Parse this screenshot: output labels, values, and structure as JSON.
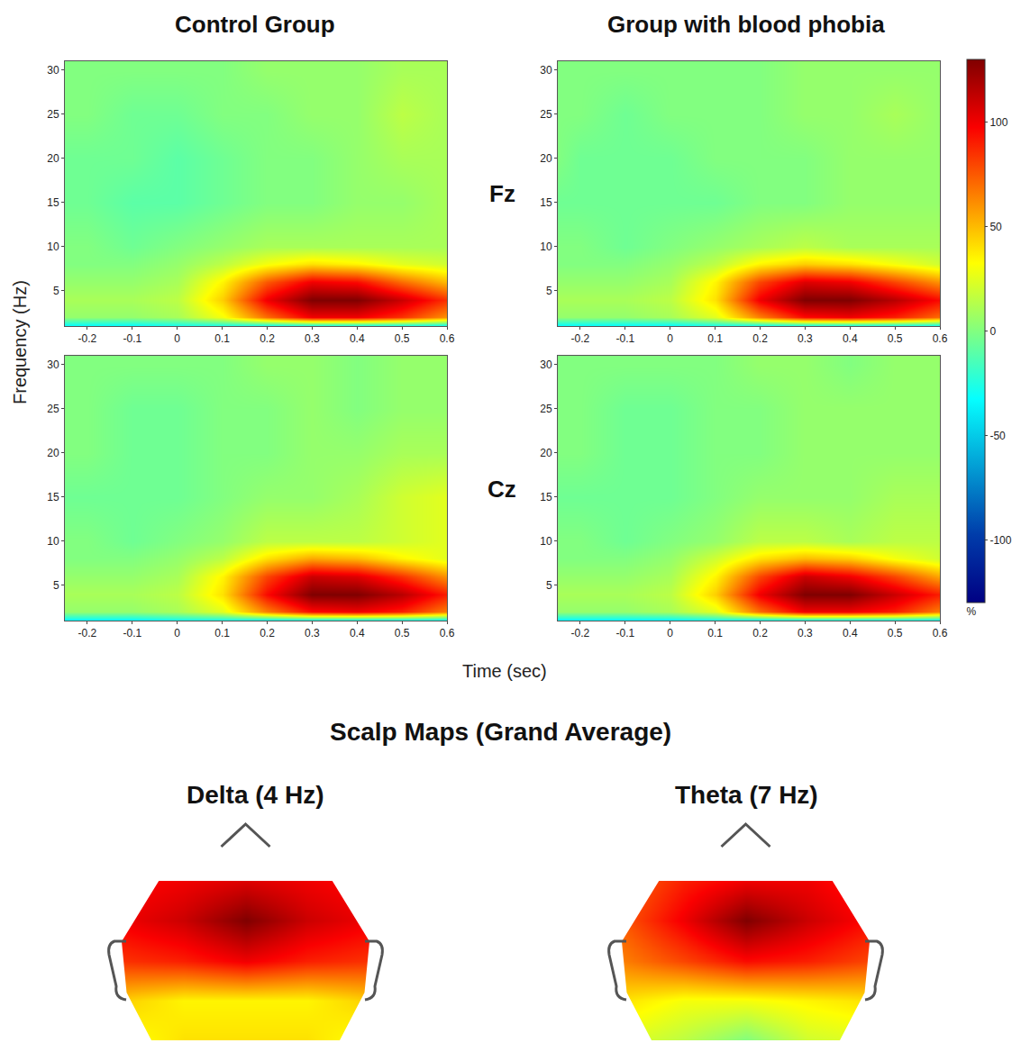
{
  "chart_data": {
    "type": "heatmap",
    "xlabel": "Time (sec)",
    "ylabel": "Frequency (Hz)",
    "grid": false,
    "xlim": [
      -0.25,
      0.6
    ],
    "ylim": [
      1,
      31
    ],
    "xticks": [
      -0.2,
      -0.1,
      0,
      0.1,
      0.2,
      0.3,
      0.4,
      0.5,
      0.6
    ],
    "yticks": [
      5,
      10,
      15,
      20,
      25,
      30
    ],
    "x": [
      -0.25,
      -0.2,
      -0.1,
      0,
      0.1,
      0.2,
      0.3,
      0.4,
      0.5,
      0.6
    ],
    "y": [
      1,
      2,
      4,
      6,
      8,
      10,
      15,
      20,
      25,
      30
    ],
    "colorbar": {
      "range": [
        -130,
        130
      ],
      "ticks": [
        -100,
        -50,
        0,
        50,
        100
      ],
      "title": "%"
    },
    "rows": [
      "Fz",
      "Cz"
    ],
    "columns": [
      {
        "title": "Control Group",
        "z": [
          [
            [
              -35,
              -35,
              -35,
              -30,
              -30,
              -35,
              -35,
              -35,
              -35,
              -35
            ],
            [
              5,
              5,
              5,
              10,
              30,
              70,
              100,
              100,
              85,
              60
            ],
            [
              10,
              10,
              10,
              15,
              45,
              100,
              130,
              130,
              110,
              85
            ],
            [
              5,
              5,
              5,
              10,
              35,
              75,
              100,
              95,
              70,
              50
            ],
            [
              0,
              0,
              0,
              5,
              15,
              30,
              40,
              35,
              25,
              20
            ],
            [
              0,
              0,
              -5,
              0,
              5,
              10,
              10,
              10,
              10,
              10
            ],
            [
              -5,
              -5,
              -10,
              -10,
              -5,
              0,
              0,
              5,
              5,
              10
            ],
            [
              -5,
              -5,
              -5,
              -10,
              -5,
              0,
              0,
              5,
              10,
              10
            ],
            [
              0,
              0,
              -5,
              -5,
              0,
              0,
              5,
              5,
              15,
              10
            ],
            [
              0,
              0,
              0,
              0,
              0,
              5,
              5,
              5,
              10,
              10
            ]
          ],
          [
            [
              -35,
              -35,
              -35,
              -30,
              -30,
              -35,
              -35,
              -35,
              -35,
              -35
            ],
            [
              5,
              5,
              5,
              10,
              25,
              65,
              95,
              100,
              90,
              65
            ],
            [
              10,
              10,
              10,
              15,
              40,
              95,
              130,
              130,
              115,
              90
            ],
            [
              5,
              5,
              5,
              10,
              35,
              80,
              110,
              105,
              85,
              60
            ],
            [
              0,
              0,
              0,
              5,
              15,
              40,
              55,
              50,
              35,
              25
            ],
            [
              0,
              0,
              -5,
              0,
              5,
              15,
              15,
              15,
              20,
              25
            ],
            [
              -5,
              -5,
              -5,
              -5,
              0,
              5,
              5,
              10,
              20,
              25
            ],
            [
              0,
              0,
              -5,
              -5,
              0,
              0,
              5,
              5,
              10,
              10
            ],
            [
              0,
              0,
              -5,
              -5,
              0,
              0,
              5,
              0,
              5,
              5
            ],
            [
              0,
              0,
              0,
              0,
              0,
              5,
              5,
              0,
              5,
              5
            ]
          ]
        ]
      },
      {
        "title": "Group with blood phobia",
        "z": [
          [
            [
              -35,
              -35,
              -35,
              -35,
              -30,
              -35,
              -35,
              -35,
              -35,
              -35
            ],
            [
              5,
              5,
              5,
              10,
              25,
              65,
              95,
              100,
              90,
              70
            ],
            [
              10,
              10,
              10,
              15,
              40,
              100,
              130,
              130,
              115,
              95
            ],
            [
              5,
              5,
              5,
              10,
              35,
              80,
              105,
              100,
              80,
              60
            ],
            [
              0,
              0,
              0,
              5,
              15,
              35,
              45,
              40,
              30,
              20
            ],
            [
              0,
              0,
              -5,
              0,
              5,
              10,
              15,
              10,
              10,
              10
            ],
            [
              -5,
              -5,
              -5,
              -5,
              -5,
              0,
              0,
              5,
              5,
              5
            ],
            [
              0,
              -5,
              -5,
              -5,
              0,
              0,
              0,
              5,
              5,
              5
            ],
            [
              0,
              0,
              -5,
              0,
              0,
              0,
              5,
              5,
              10,
              5
            ],
            [
              0,
              0,
              0,
              0,
              0,
              0,
              5,
              5,
              5,
              5
            ]
          ],
          [
            [
              -35,
              -35,
              -35,
              -35,
              -30,
              -35,
              -35,
              -35,
              -35,
              -35
            ],
            [
              5,
              5,
              5,
              10,
              25,
              70,
              100,
              100,
              90,
              65
            ],
            [
              10,
              10,
              10,
              15,
              45,
              100,
              130,
              130,
              110,
              90
            ],
            [
              5,
              5,
              5,
              10,
              35,
              80,
              110,
              100,
              80,
              55
            ],
            [
              0,
              0,
              0,
              5,
              20,
              40,
              50,
              45,
              30,
              20
            ],
            [
              0,
              0,
              -5,
              0,
              5,
              15,
              15,
              10,
              15,
              15
            ],
            [
              -5,
              -5,
              -5,
              -5,
              0,
              5,
              5,
              5,
              10,
              10
            ],
            [
              0,
              0,
              -5,
              -5,
              0,
              0,
              5,
              5,
              5,
              5
            ],
            [
              0,
              0,
              -5,
              -5,
              0,
              0,
              5,
              5,
              5,
              5
            ],
            [
              0,
              0,
              0,
              0,
              0,
              5,
              5,
              0,
              5,
              5
            ]
          ]
        ]
      }
    ],
    "scalp_maps": {
      "title": "Scalp Maps (Grand Average)",
      "tick_labels": false,
      "x": [
        -1,
        -0.5,
        0,
        0.5,
        1
      ],
      "y": [
        -0.6,
        -0.2,
        0.2,
        0.6,
        1.0
      ],
      "maps": [
        {
          "title": "Delta (4 Hz)",
          "z": [
            [
              30,
              40,
              40,
              40,
              30
            ],
            [
              45,
              35,
              35,
              35,
              45
            ],
            [
              85,
              90,
              100,
              90,
              85
            ],
            [
              100,
              110,
              130,
              110,
              100
            ],
            [
              95,
              100,
              105,
              100,
              95
            ]
          ]
        },
        {
          "title": "Theta (7 Hz)",
          "z": [
            [
              25,
              15,
              0,
              20,
              25
            ],
            [
              40,
              30,
              30,
              35,
              40
            ],
            [
              65,
              80,
              95,
              90,
              80
            ],
            [
              75,
              100,
              130,
              110,
              95
            ],
            [
              70,
              90,
              100,
              100,
              90
            ]
          ]
        }
      ]
    }
  }
}
